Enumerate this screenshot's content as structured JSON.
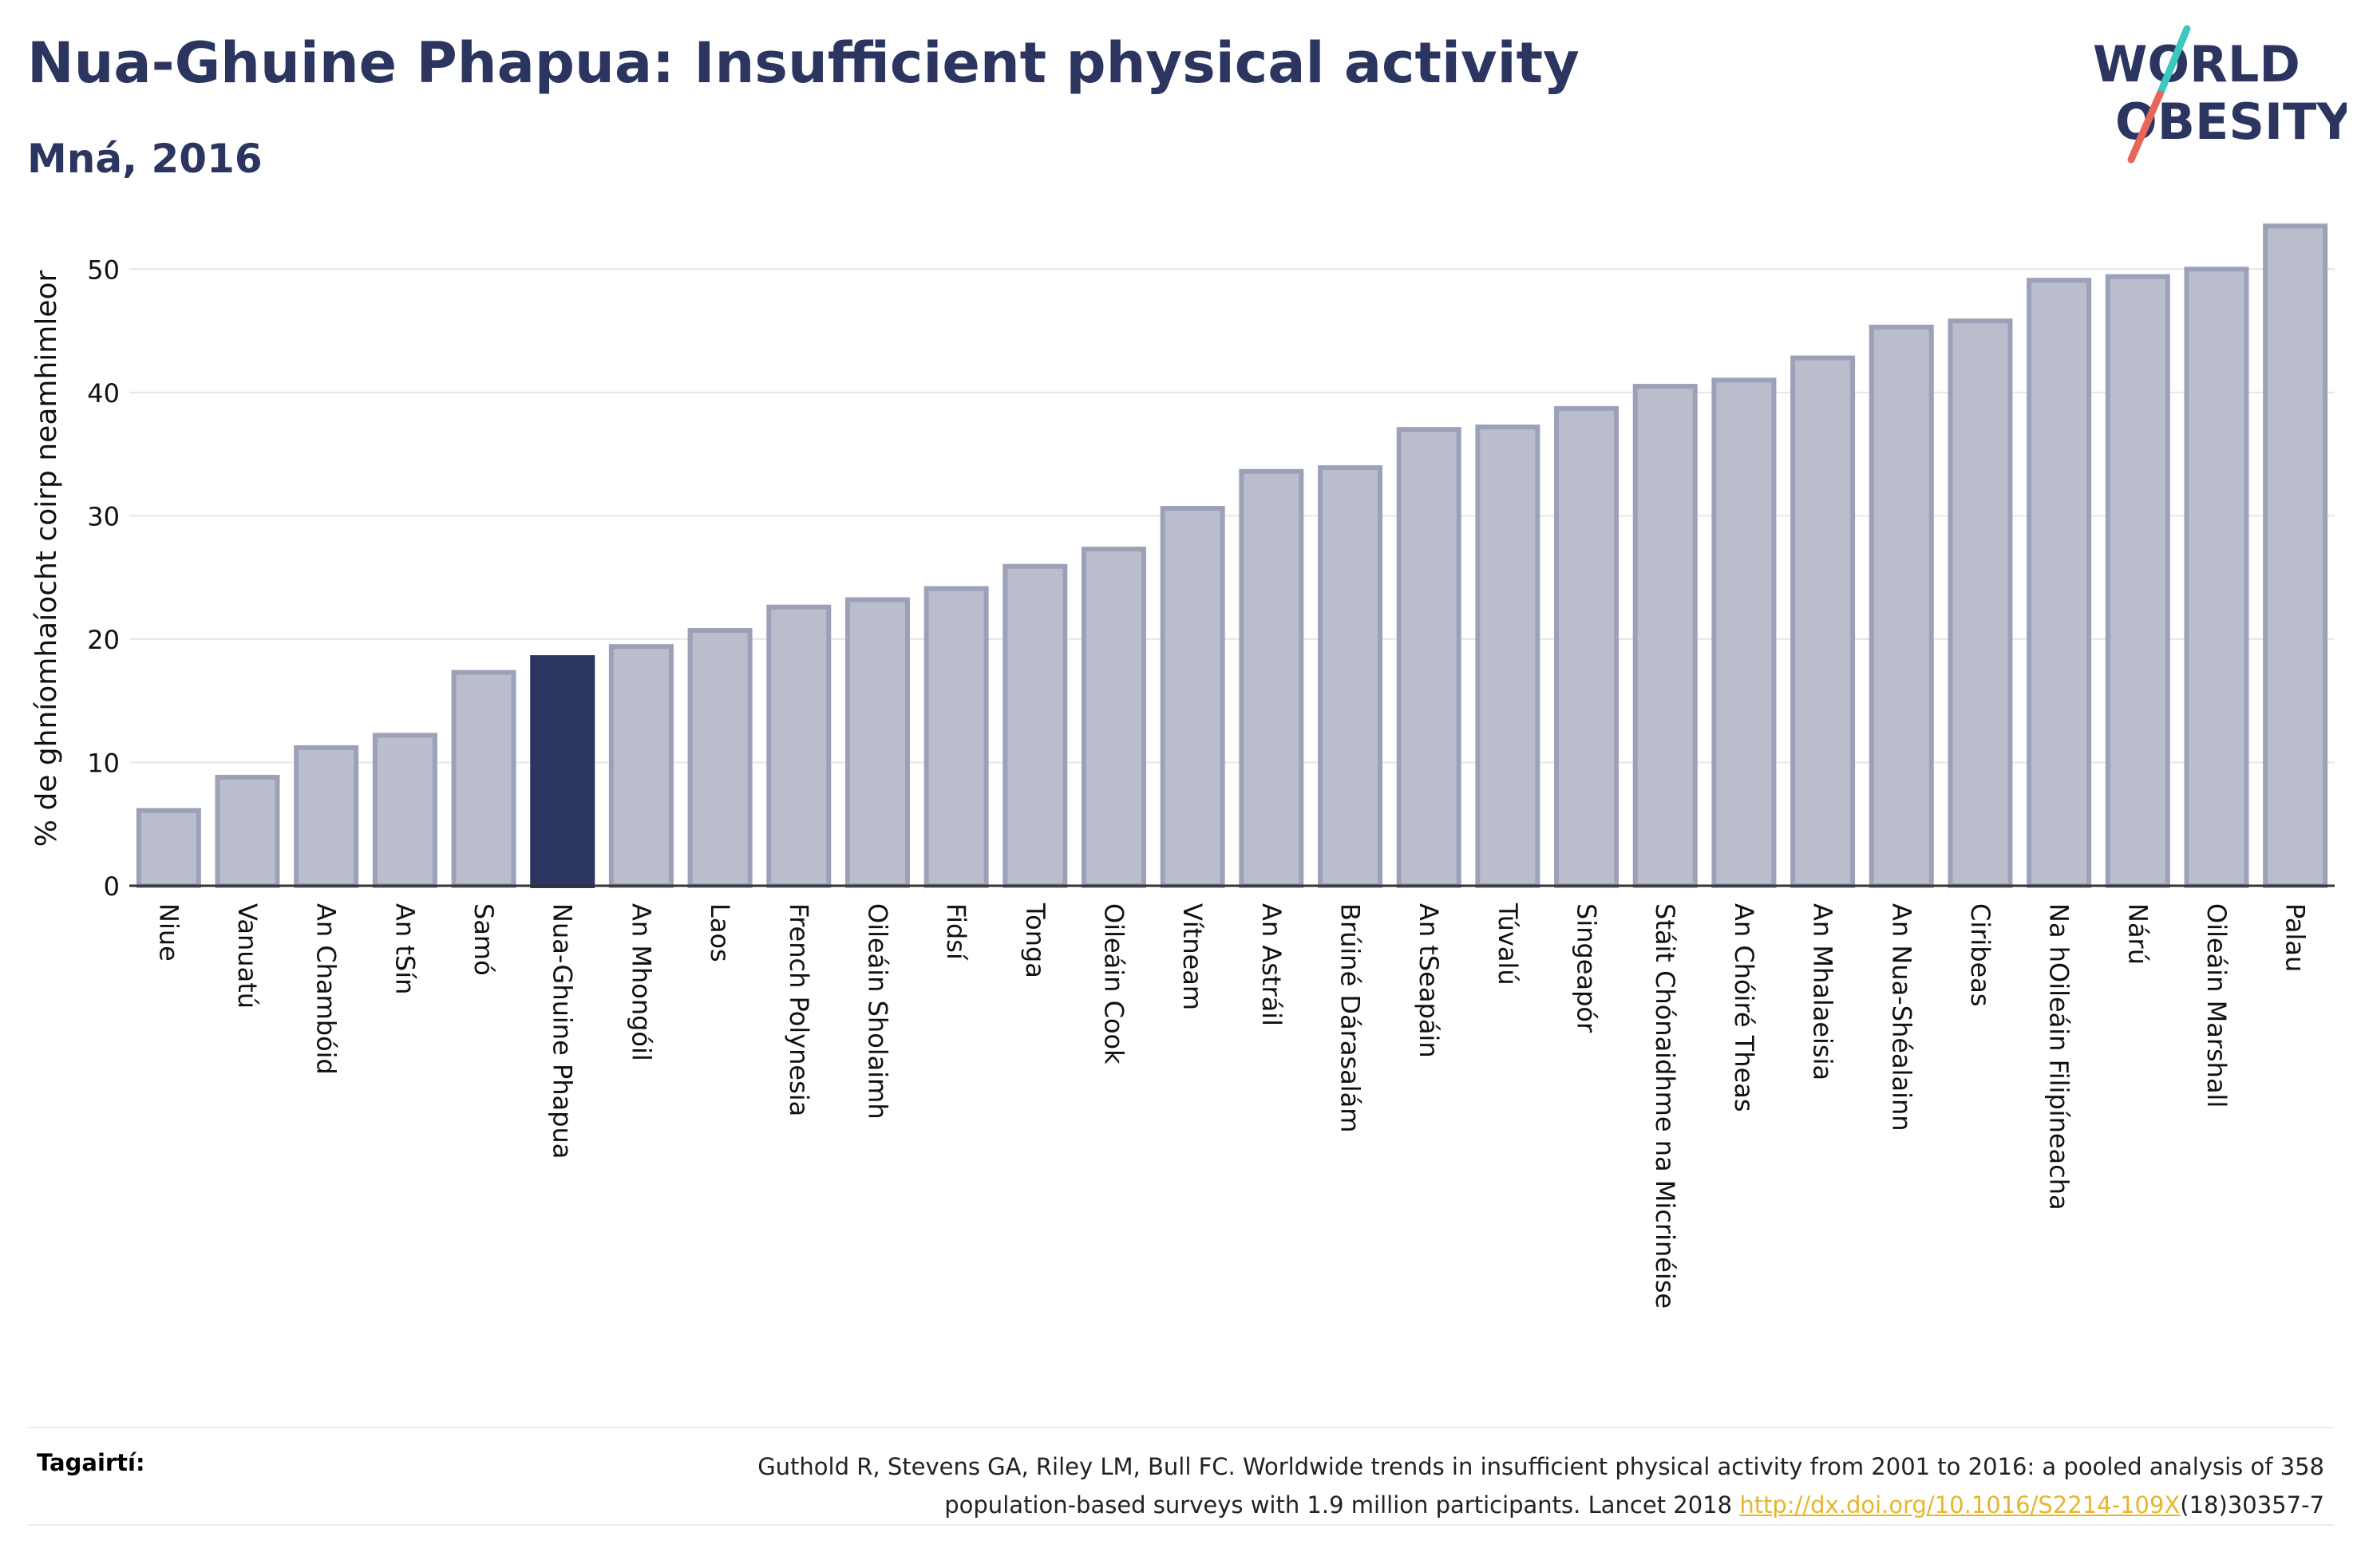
{
  "header": {
    "title": "Nua-Ghuine Phapua: Insufficient physical activity",
    "subtitle": "Mná, 2016"
  },
  "logo": {
    "line1": "WORLD",
    "line2": "OBESITY",
    "slash_colors": [
      "#3cc7c1",
      "#e8655a"
    ],
    "text_color": "#2b3560"
  },
  "chart_data": {
    "type": "bar",
    "title": "Nua-Ghuine Phapua: Insufficient physical activity",
    "subtitle": "Mná, 2016",
    "xlabel": "",
    "ylabel": "% de ghníomhaíocht coirp neamhimleor",
    "ylim": [
      0,
      55
    ],
    "yticks": [
      0,
      10,
      20,
      30,
      40,
      50
    ],
    "grid": true,
    "highlight": "Nua-Ghuine Phapua",
    "colors": {
      "bar": "#b9bdcc",
      "bar_border": "#9ca1b8",
      "highlight": "#2b3560",
      "grid": "#e6e6e6",
      "axis": "#333333"
    },
    "categories": [
      "Niue",
      "Vanuatú",
      "An Chambóid",
      "An tSín",
      "Samó",
      "Nua-Ghuine Phapua",
      "An Mhongóil",
      "Laos",
      "French Polynesia",
      "Oileáin Sholaimh",
      "Fidsí",
      "Tonga",
      "Oileáin Cook",
      "Vítneam",
      "An Astráil",
      "Brúiné Dárasalám",
      "An tSeapáin",
      "Túvalú",
      "Singeapór",
      "Stáit Chónaidhme na Micrinéise",
      "An Chóiré Theas",
      "An Mhalaeisia",
      "An Nua-Shéalainn",
      "Ciribeas",
      "Na hOileáin Filipíneacha",
      "Nárú",
      "Oileáin Marshall",
      "Palau"
    ],
    "values": [
      6.1,
      8.8,
      11.2,
      12.2,
      17.3,
      18.5,
      19.4,
      20.7,
      22.6,
      23.2,
      24.1,
      25.9,
      27.3,
      30.6,
      33.6,
      33.9,
      37.0,
      37.2,
      38.7,
      40.5,
      41.0,
      42.8,
      45.3,
      45.8,
      49.1,
      49.4,
      50.0,
      53.5
    ]
  },
  "footer": {
    "ref_label": "Tagairtí:",
    "ref_line1": "Guthold R, Stevens GA, Riley LM, Bull FC. Worldwide trends in insufficient physical activity from 2001 to 2016: a pooled analysis of 358",
    "ref_line2_start": "population-based surveys with 1.9 million participants. Lancet 2018 ",
    "ref_link": "http://dx.doi.org/10.1016/S2214-109X",
    "ref_line2_end": "(18)30357-7"
  }
}
